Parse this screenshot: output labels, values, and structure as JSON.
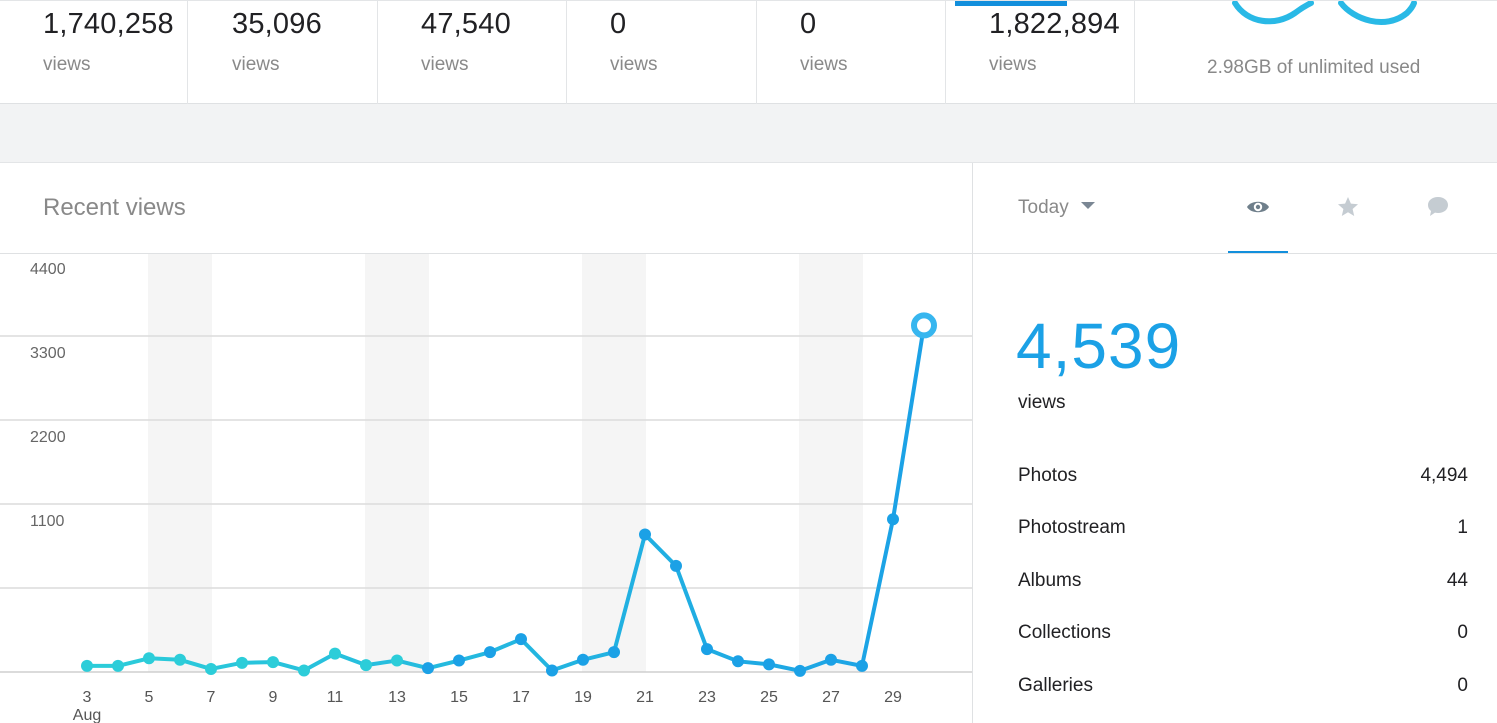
{
  "stats": [
    {
      "value": "1,740,258",
      "label": "views"
    },
    {
      "value": "35,096",
      "label": "views"
    },
    {
      "value": "47,540",
      "label": "views"
    },
    {
      "value": "0",
      "label": "views"
    },
    {
      "value": "0",
      "label": "views"
    },
    {
      "value": "1,822,894",
      "label": "views"
    }
  ],
  "storage": {
    "text": "2.98GB of unlimited used",
    "icon": "infinity-icon",
    "color": "#29b9e6"
  },
  "recent": {
    "title": "Recent views"
  },
  "filter": {
    "label": "Today",
    "icon": "caret-down-icon"
  },
  "tabs": [
    {
      "name": "views",
      "icon": "eye-icon",
      "active": true
    },
    {
      "name": "faves",
      "icon": "star-icon",
      "active": false
    },
    {
      "name": "comments",
      "icon": "comment-icon",
      "active": false
    }
  ],
  "summary": {
    "value": "4,539",
    "label": "views",
    "rows": [
      {
        "label": "Photos",
        "value": "4,494"
      },
      {
        "label": "Photostream",
        "value": "1"
      },
      {
        "label": "Albums",
        "value": "44"
      },
      {
        "label": "Collections",
        "value": "0"
      },
      {
        "label": "Galleries",
        "value": "0"
      }
    ]
  },
  "colors": {
    "accent": "#128fdc",
    "line_start": "#2ccdd9",
    "line_end": "#1ba1e6",
    "weekend": "#f5f5f5"
  },
  "chart_data": {
    "type": "line",
    "x": [
      3,
      4,
      5,
      6,
      7,
      8,
      9,
      10,
      11,
      12,
      13,
      14,
      15,
      16,
      17,
      18,
      19,
      20,
      21,
      22,
      23,
      24,
      25,
      26,
      27,
      28,
      29,
      30
    ],
    "values": [
      80,
      80,
      180,
      160,
      40,
      120,
      130,
      20,
      240,
      90,
      150,
      50,
      150,
      260,
      430,
      20,
      160,
      260,
      1800,
      1390,
      300,
      140,
      100,
      15,
      160,
      80,
      2000,
      4539
    ],
    "y_ticks": [
      1100,
      2200,
      3300,
      4400,
      5500
    ],
    "x_tick_labels": [
      "3",
      "5",
      "7",
      "9",
      "11",
      "13",
      "15",
      "17",
      "19",
      "21",
      "23",
      "25",
      "27",
      "29"
    ],
    "x_tick_values": [
      3,
      5,
      7,
      9,
      11,
      13,
      15,
      17,
      19,
      21,
      23,
      25,
      27,
      29
    ],
    "month_label": "Aug",
    "ylim": [
      0,
      5500
    ],
    "weekends": [
      [
        5,
        6
      ],
      [
        12,
        13
      ],
      [
        19,
        20
      ],
      [
        26,
        27
      ]
    ],
    "grid": true
  }
}
